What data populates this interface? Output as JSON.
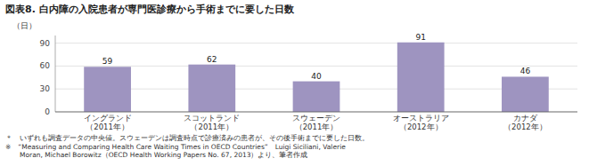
{
  "chart_data": {
    "type": "bar",
    "title": "図表8. 白内障の入院患者が専門医診療から手術までに要した日数",
    "ylabel": "（日）",
    "categories": [
      "イングランド\n（2011年）",
      "スコットランド\n（2011年）",
      "スウェーデン\n（2011年）",
      "オーストラリア\n（2012年）",
      "カナダ\n（2012年）"
    ],
    "values": [
      59,
      62,
      40,
      91,
      46
    ],
    "color": "#9e94c0",
    "ylim": [
      0,
      100
    ],
    "yticks": [
      0,
      30,
      60,
      90
    ],
    "grid": true,
    "data_labels": true,
    "annotations": [
      "＊　いずれも調査データの中央値。スウェーデンは調査時点で診療済みの患者が、その後手術までに要した日数。",
      "※　“Measuring and Comparing Health Care Waiting Times in OECD Countries”　Luigi Siciliani, Valerie\n　　Moran, Michael Borowitz（OECD Health Working Papers No. 67, 2013）より、筆者作成"
    ]
  }
}
